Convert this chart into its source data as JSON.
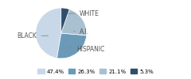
{
  "labels": [
    "WHITE",
    "HISPANIC",
    "BLACK",
    "A.I."
  ],
  "values": [
    47.4,
    26.3,
    21.1,
    5.3
  ],
  "colors": [
    "#c8d8e8",
    "#6b9ab8",
    "#a8c0d0",
    "#2d4f6e"
  ],
  "legend_labels": [
    "47.4%",
    "26.3%",
    "21.1%",
    "5.3%"
  ],
  "startangle": 90,
  "background_color": "#ffffff"
}
